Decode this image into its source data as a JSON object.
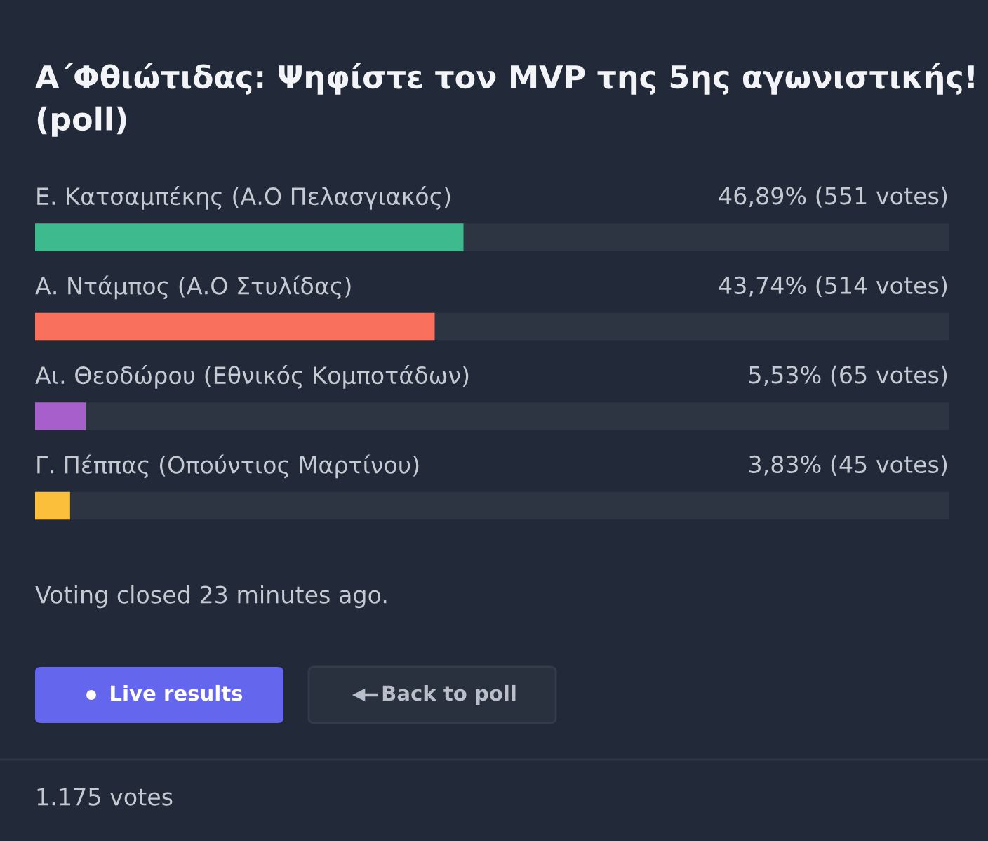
{
  "chart_data": {
    "type": "bar",
    "orientation": "horizontal",
    "title": "Α΄Φθιώτιδας: Ψηφίστε τον MVP της 5ης αγωνιστικής! (poll)",
    "categories": [
      "Ε. Κατσαμπέκης (Α.Ο Πελασγιακός)",
      "Α. Ντάμπος (Α.Ο Στυλίδας)",
      "Αι. Θεοδώρου (Εθνικός Κομποτάδων)",
      "Γ. Πέππας (Οπούντιος Μαρτίνου)"
    ],
    "values": [
      46.89,
      43.74,
      5.53,
      3.83
    ],
    "colors": [
      "#3dbb8f",
      "#f9705c",
      "#a760cb",
      "#fcbf3b"
    ],
    "value_labels": [
      "46,89% (551 votes)",
      "43,74% (514 votes)",
      "5,53% (65 votes)",
      "3,83% (45 votes)"
    ],
    "xlim": [
      0,
      100
    ],
    "annotations": [
      "Voting closed 23 minutes ago.",
      "Live results",
      "Back to poll",
      "1.175 votes"
    ]
  }
}
